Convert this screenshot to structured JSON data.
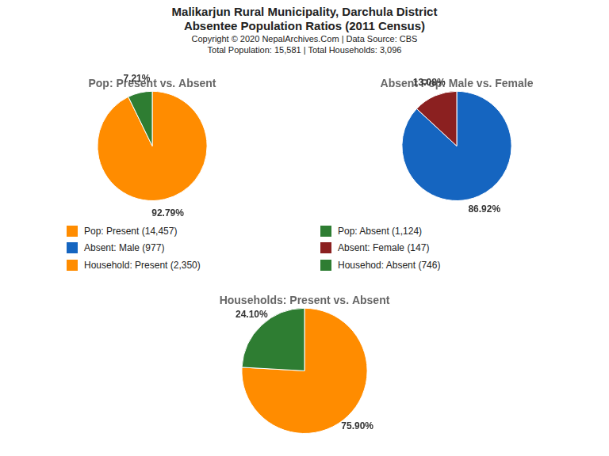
{
  "title": "Malikarjun Rural Municipality, Darchula District",
  "subtitle": "Absentee Population Ratios (2011 Census)",
  "annotations": [
    "Copyright © 2020 NepalArchives.Com | Data Source: CBS",
    "Total Population: 15,581 | Total Households: 3,096"
  ],
  "chart_data": [
    {
      "type": "pie",
      "title": "Pop: Present vs. Absent",
      "categories": [
        "Pop: Present (14,457)",
        "Pop: Absent (1,124)"
      ],
      "values": [
        92.79,
        7.21
      ],
      "value_labels": [
        "92.79%",
        "7.21%"
      ],
      "colors": [
        "#FF8C00",
        "#2E7D32"
      ],
      "data_labels": true
    },
    {
      "type": "pie",
      "title": "Absent Pop: Male vs. Female",
      "categories": [
        "Absent: Male (977)",
        "Absent: Female (147)"
      ],
      "values": [
        86.92,
        13.08
      ],
      "value_labels": [
        "86.92%",
        "13.08%"
      ],
      "colors": [
        "#1565C0",
        "#8B2020"
      ],
      "data_labels": true
    },
    {
      "type": "pie",
      "title": "Households: Present vs. Absent",
      "categories": [
        "Household: Present (2,350)",
        "Househod: Absent (746)"
      ],
      "values": [
        75.9,
        24.1
      ],
      "value_labels": [
        "75.90%",
        "24.10%"
      ],
      "colors": [
        "#FF8C00",
        "#2E7D32"
      ],
      "data_labels": true
    }
  ]
}
